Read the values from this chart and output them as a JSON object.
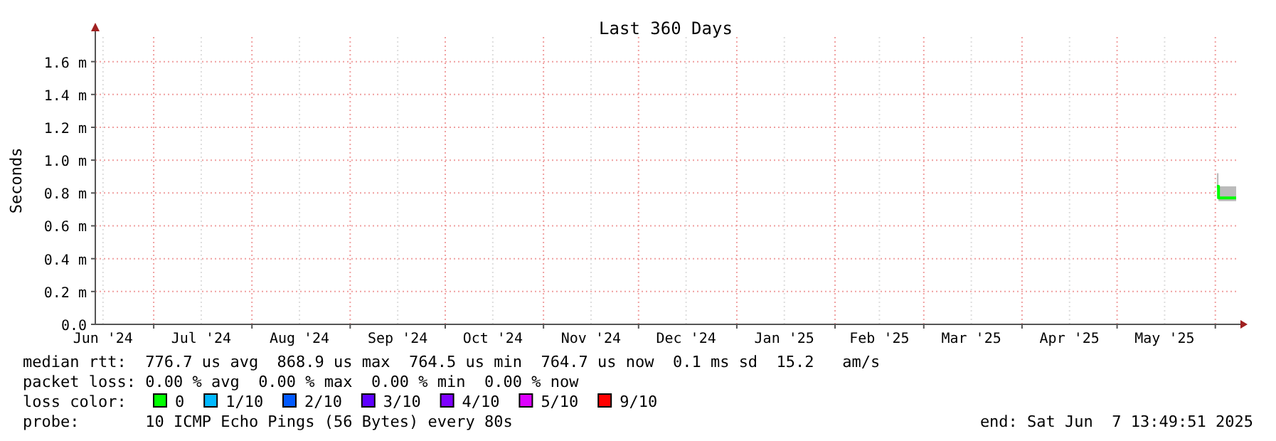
{
  "chart_data": {
    "type": "step",
    "title": "Last 360 Days",
    "ylabel": "Seconds",
    "legend_title": "loss color:",
    "legend": "bottom",
    "grid": true,
    "xlim": [
      "2024-06-12T13:49",
      "2025-06-07T13:49"
    ],
    "xticks": [
      {
        "value": "2024-06-15",
        "label": "Jun '24"
      },
      {
        "value": "2024-07-01",
        "label": null
      },
      {
        "value": "2024-07-16",
        "label": "Jul '24"
      },
      {
        "value": "2024-08-01",
        "label": null
      },
      {
        "value": "2024-08-16",
        "label": "Aug '24"
      },
      {
        "value": "2024-09-01",
        "label": null
      },
      {
        "value": "2024-09-16",
        "label": "Sep '24"
      },
      {
        "value": "2024-10-01",
        "label": null
      },
      {
        "value": "2024-10-16",
        "label": "Oct '24"
      },
      {
        "value": "2024-11-01",
        "label": null
      },
      {
        "value": "2024-11-16",
        "label": "Nov '24"
      },
      {
        "value": "2024-12-01",
        "label": null
      },
      {
        "value": "2024-12-16",
        "label": "Dec '24"
      },
      {
        "value": "2025-01-01",
        "label": null
      },
      {
        "value": "2025-01-16",
        "label": "Jan '25"
      },
      {
        "value": "2025-02-01",
        "label": null
      },
      {
        "value": "2025-02-15",
        "label": "Feb '25"
      },
      {
        "value": "2025-03-01",
        "label": null
      },
      {
        "value": "2025-03-16",
        "label": "Mar '25"
      },
      {
        "value": "2025-04-01",
        "label": null
      },
      {
        "value": "2025-04-16",
        "label": "Apr '25"
      },
      {
        "value": "2025-05-01",
        "label": null
      },
      {
        "value": "2025-05-16",
        "label": "May '25"
      },
      {
        "value": "2025-06-01",
        "label": null
      }
    ],
    "ylim": [
      0,
      1.75
    ],
    "yticks": [
      {
        "value": 0,
        "label": "0.0"
      },
      {
        "value": 0.2,
        "label": "0.2 m"
      },
      {
        "value": 0.4,
        "label": "0.4 m"
      },
      {
        "value": 0.6,
        "label": "0.6 m"
      },
      {
        "value": 0.8,
        "label": "0.8 m"
      },
      {
        "value": 1,
        "label": "1.0 m"
      },
      {
        "value": 1.2,
        "label": "1.2 m"
      },
      {
        "value": 1.4,
        "label": "1.4 m"
      },
      {
        "value": 1.6,
        "label": "1.6 m"
      }
    ],
    "x": [
      "2025-06-01T12:00",
      "2025-06-02T00:00",
      "2025-06-07T13:49"
    ],
    "series": [
      {
        "name": "0",
        "color": "#00ff00",
        "values": [
          0.84,
          0.77,
          0.77
        ],
        "lower": [
          0.82,
          0.75,
          0.75
        ],
        "upper": [
          0.92,
          0.84,
          0.84
        ]
      },
      {
        "name": "1/10",
        "color": "#00b8ff",
        "values": [
          null,
          null,
          null
        ]
      },
      {
        "name": "2/10",
        "color": "#0059ff",
        "values": [
          null,
          null,
          null
        ]
      },
      {
        "name": "3/10",
        "color": "#5e00ff",
        "values": [
          null,
          null,
          null
        ]
      },
      {
        "name": "4/10",
        "color": "#7e00ff",
        "values": [
          null,
          null,
          null
        ]
      },
      {
        "name": "5/10",
        "color": "#dd00ff",
        "values": [
          null,
          null,
          null
        ]
      },
      {
        "name": "9/10",
        "color": "#ff0000",
        "values": [
          null,
          null,
          null
        ]
      }
    ],
    "annotations": [
      "median rtt:  776.7 us avg  868.9 us max  764.5 us min  764.7 us now  0.1 ms sd  15.2   am/s",
      "packet loss: 0.00 % avg  0.00 % max  0.00 % min  0.00 % now",
      "probe:       10 ICMP Echo Pings (56 Bytes) every 80s",
      "end: Sat Jun  7 13:49:51 2025"
    ]
  }
}
